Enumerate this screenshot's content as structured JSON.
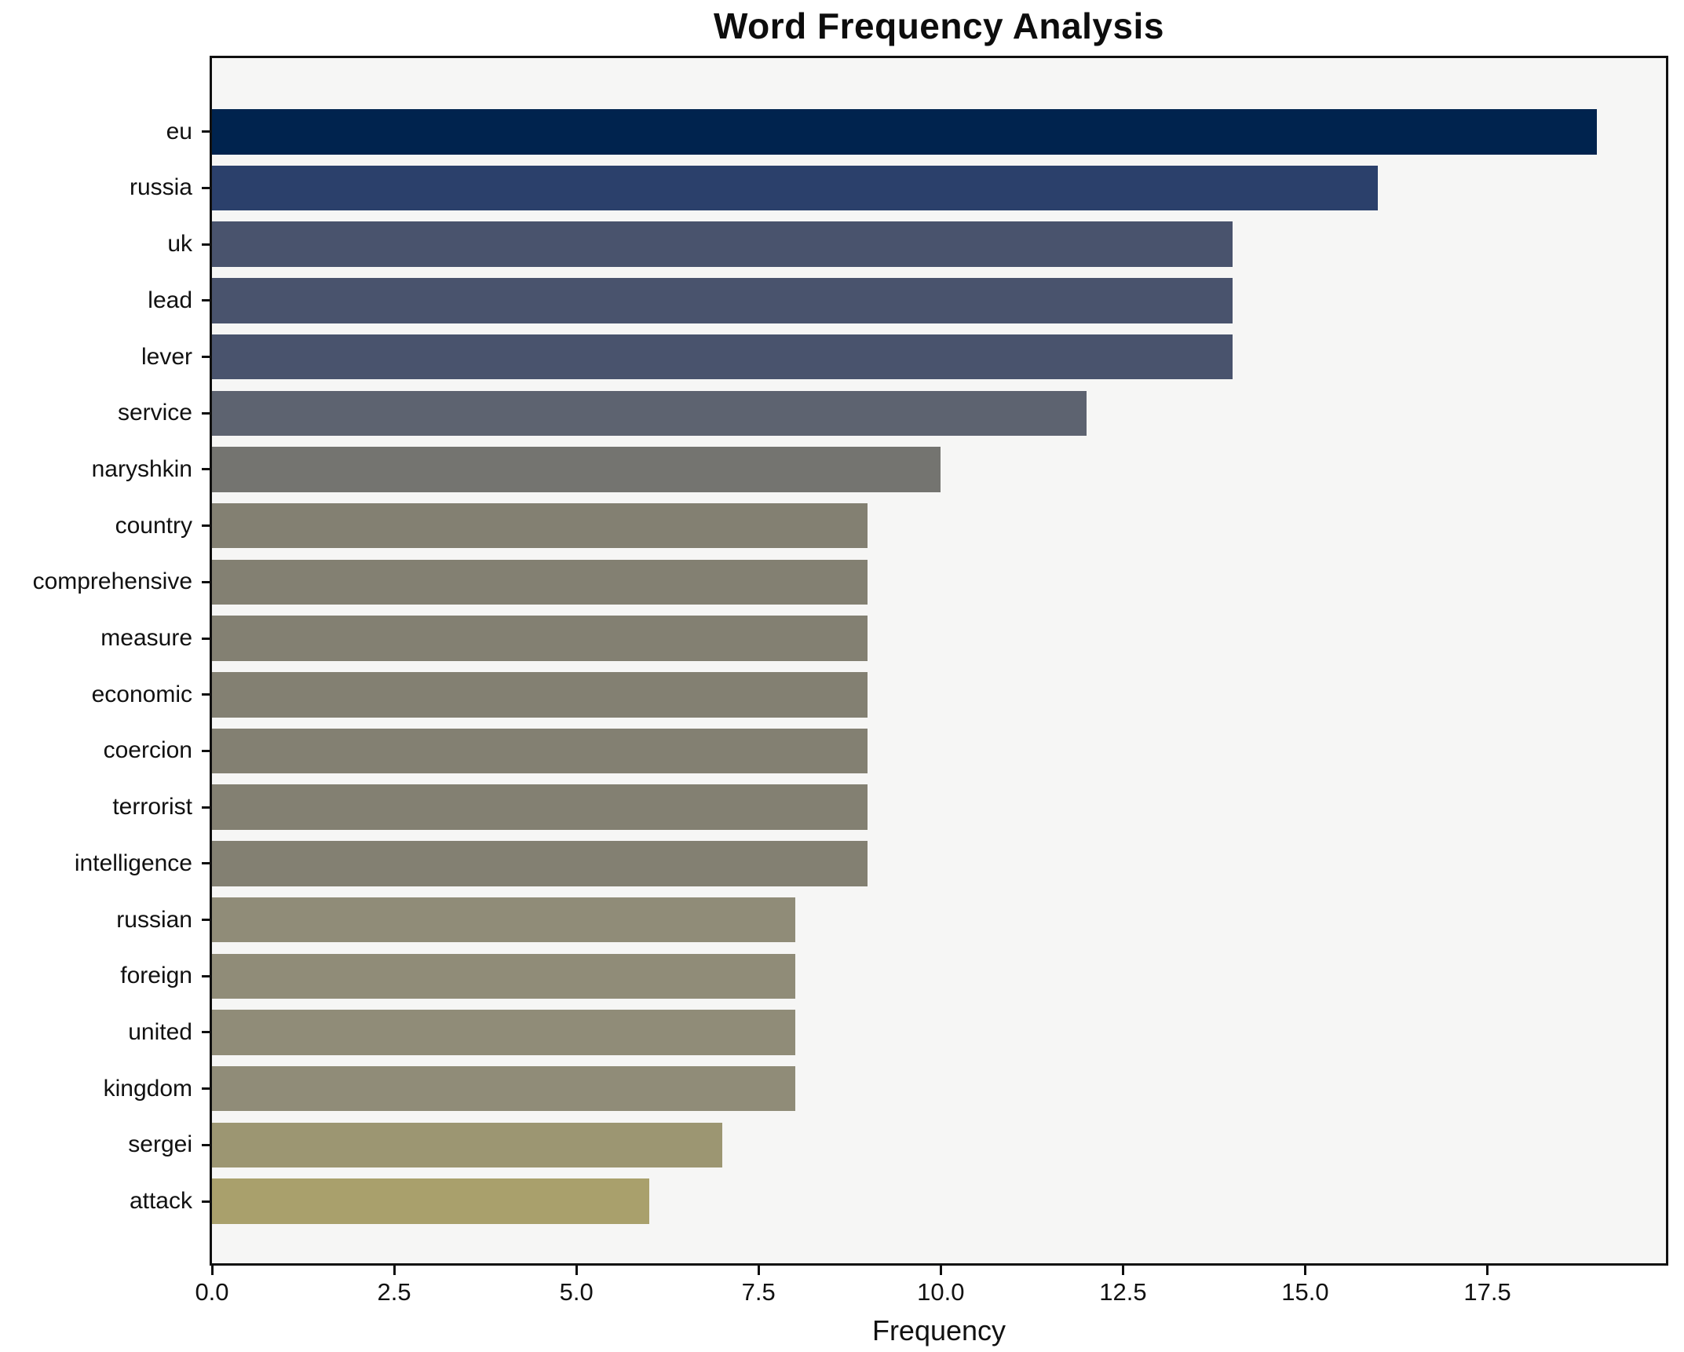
{
  "chart_data": {
    "type": "bar",
    "orientation": "horizontal",
    "title": "Word Frequency Analysis",
    "xlabel": "Frequency",
    "ylabel": "",
    "categories": [
      "eu",
      "russia",
      "uk",
      "lead",
      "lever",
      "service",
      "naryshkin",
      "country",
      "comprehensive",
      "measure",
      "economic",
      "coercion",
      "terrorist",
      "intelligence",
      "russian",
      "foreign",
      "united",
      "kingdom",
      "sergei",
      "attack"
    ],
    "values": [
      19,
      16,
      14,
      14,
      14,
      12,
      10,
      9,
      9,
      9,
      9,
      9,
      9,
      9,
      8,
      8,
      8,
      8,
      7,
      6
    ],
    "bar_colors": [
      "#00234e",
      "#2b406b",
      "#49536d",
      "#49536d",
      "#49536d",
      "#5d6370",
      "#747470",
      "#838072",
      "#838072",
      "#838072",
      "#838072",
      "#838072",
      "#838072",
      "#838072",
      "#908c78",
      "#908c78",
      "#908c78",
      "#908c78",
      "#9c9672",
      "#a9a06c"
    ],
    "xlim": [
      0,
      19.95
    ],
    "xticks": [
      {
        "value": 0,
        "label": "0.0"
      },
      {
        "value": 2.5,
        "label": "2.5"
      },
      {
        "value": 5,
        "label": "5.0"
      },
      {
        "value": 7.5,
        "label": "7.5"
      },
      {
        "value": 10,
        "label": "10.0"
      },
      {
        "value": 12.5,
        "label": "12.5"
      },
      {
        "value": 15,
        "label": "15.0"
      },
      {
        "value": 17.5,
        "label": "17.5"
      }
    ],
    "grid": false,
    "plot_background": "#f6f6f5",
    "figure_background": "#ffffff",
    "spine_color": "#101010"
  }
}
